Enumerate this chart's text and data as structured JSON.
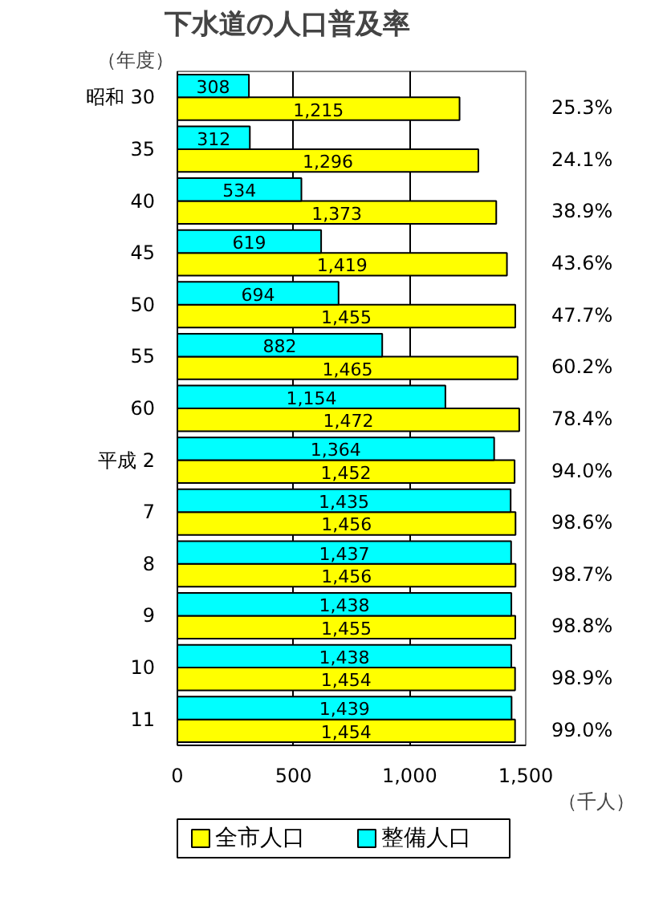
{
  "chart_data": {
    "type": "bar",
    "orientation": "horizontal",
    "title": "下水道の人口普及率",
    "ylabel": "（年度）",
    "xlabel": "（千人）",
    "categories": [
      "昭和 30",
      "35",
      "40",
      "45",
      "50",
      "55",
      "60",
      "平成 2",
      "7",
      "8",
      "9",
      "10",
      "11"
    ],
    "series": [
      {
        "name": "全市人口",
        "color": "#ffff00",
        "values": [
          1215,
          1296,
          1373,
          1419,
          1455,
          1465,
          1472,
          1452,
          1456,
          1456,
          1455,
          1454,
          1454
        ],
        "value_labels": [
          "1,215",
          "1,296",
          "1,373",
          "1,419",
          "1,455",
          "1,465",
          "1,472",
          "1,452",
          "1,456",
          "1,456",
          "1,455",
          "1,454",
          "1,454"
        ]
      },
      {
        "name": "整備人口",
        "color": "#00ffff",
        "values": [
          308,
          312,
          534,
          619,
          694,
          882,
          1154,
          1364,
          1435,
          1437,
          1438,
          1438,
          1439
        ],
        "value_labels": [
          "308",
          "312",
          "534",
          "619",
          "694",
          "882",
          "1,154",
          "1,364",
          "1,435",
          "1,437",
          "1,438",
          "1,438",
          "1,439"
        ]
      }
    ],
    "xlim": [
      0,
      1500
    ],
    "xticks": [
      0,
      500,
      {
        "value": 1000,
        "label": "1,000"
      },
      {
        "value": 1500,
        "label": "1,500"
      }
    ],
    "grid": "x",
    "legend": "bottom",
    "annotations": [
      "25.3%",
      "24.1%",
      "38.9%",
      "43.6%",
      "47.7%",
      "60.2%",
      "78.4%",
      "94.0%",
      "98.6%",
      "98.7%",
      "98.8%",
      "98.9%",
      "99.0%"
    ]
  }
}
